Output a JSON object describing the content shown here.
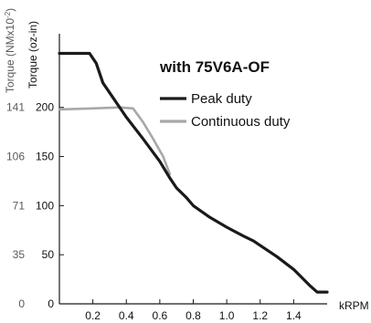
{
  "chart_data": {
    "type": "line",
    "title": "with 75V6A-OF",
    "xlabel": "kRPM",
    "ylabel": "Torque (oz-in)",
    "ylabel_secondary": "Torque (NMx10",
    "ylabel_secondary_exp": "-2",
    "ylabel_secondary_close": ")",
    "xlim": [
      0,
      1.6
    ],
    "ylim": [
      0,
      275
    ],
    "x_ticks": [
      "0.2",
      "0.4",
      "0.6",
      "0.8",
      "1.0",
      "1.2",
      "1.4"
    ],
    "y_ticks": [
      "0",
      "50",
      "100",
      "150",
      "200"
    ],
    "y_ticks_secondary": [
      "0",
      "35",
      "71",
      "106",
      "141"
    ],
    "grid": false,
    "legend_position": "top-right",
    "series": [
      {
        "name": "Peak duty",
        "color": "#1a1a1a",
        "x": [
          0,
          0.18,
          0.22,
          0.26,
          0.4,
          0.5,
          0.6,
          0.66,
          0.7,
          0.76,
          0.8,
          0.9,
          1.0,
          1.1,
          1.16,
          1.3,
          1.4,
          1.5,
          1.54,
          1.6
        ],
        "y": [
          255,
          255,
          245,
          225,
          190,
          168,
          145,
          128,
          118,
          108,
          100,
          88,
          78,
          69,
          64,
          48,
          35,
          18,
          12,
          12
        ]
      },
      {
        "name": "Continuous duty",
        "color": "#a8a8a8",
        "x": [
          0,
          0.2,
          0.36,
          0.44,
          0.5,
          0.56,
          0.62,
          0.66
        ],
        "y": [
          198,
          199,
          200,
          199,
          185,
          168,
          150,
          132
        ]
      }
    ]
  }
}
